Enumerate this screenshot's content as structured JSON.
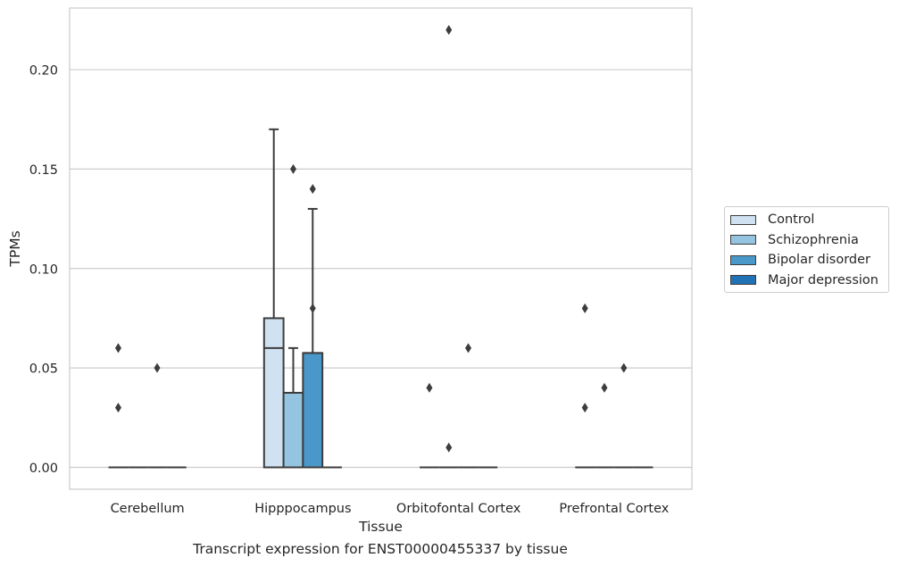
{
  "chart_data": {
    "type": "box",
    "title": "",
    "xlabel": "Tissue",
    "ylabel": "TPMs",
    "ylim": [
      -0.011,
      0.231
    ],
    "yticks": [
      "0.00",
      "0.05",
      "0.10",
      "0.15",
      "0.20"
    ],
    "ytick_values": [
      0.0,
      0.05,
      0.1,
      0.15,
      0.2
    ],
    "grid": "horizontal",
    "legend_position": "outside-right",
    "categories": [
      "Cerebellum",
      "Hipppocampus",
      "Orbitofontal Cortex",
      "Prefrontal Cortex"
    ],
    "series": [
      {
        "name": "Control",
        "color": "#d0e1f2",
        "boxes": [
          {
            "q1": 0,
            "median": 0,
            "q3": 0,
            "whisker_low": 0,
            "whisker_high": 0,
            "outliers": [
              0.06,
              0.03
            ]
          },
          {
            "q1": 0,
            "median": 0.06,
            "q3": 0.075,
            "whisker_low": 0,
            "whisker_high": 0.17,
            "outliers": []
          },
          {
            "q1": 0,
            "median": 0,
            "q3": 0,
            "whisker_low": 0,
            "whisker_high": 0,
            "outliers": [
              0.04
            ]
          },
          {
            "q1": 0,
            "median": 0,
            "q3": 0,
            "whisker_low": 0,
            "whisker_high": 0,
            "outliers": [
              0.08,
              0.03
            ]
          }
        ]
      },
      {
        "name": "Schizophrenia",
        "color": "#94c4df",
        "boxes": [
          {
            "q1": 0,
            "median": 0,
            "q3": 0,
            "whisker_low": 0,
            "whisker_high": 0,
            "outliers": []
          },
          {
            "q1": 0,
            "median": 0.0375,
            "q3": 0.0375,
            "whisker_low": 0,
            "whisker_high": 0.06,
            "outliers": [
              0.15
            ]
          },
          {
            "q1": 0,
            "median": 0,
            "q3": 0,
            "whisker_low": 0,
            "whisker_high": 0,
            "outliers": [
              0.22,
              0.01
            ]
          },
          {
            "q1": 0,
            "median": 0,
            "q3": 0,
            "whisker_low": 0,
            "whisker_high": 0,
            "outliers": [
              0.04
            ]
          }
        ]
      },
      {
        "name": "Bipolar disorder",
        "color": "#4a98c9",
        "boxes": [
          {
            "q1": 0,
            "median": 0,
            "q3": 0,
            "whisker_low": 0,
            "whisker_high": 0,
            "outliers": [
              0.05
            ]
          },
          {
            "q1": 0,
            "median": 0.0575,
            "q3": 0.0575,
            "whisker_low": 0,
            "whisker_high": 0.13,
            "outliers": [
              0.14,
              0.08
            ]
          },
          {
            "q1": 0,
            "median": 0,
            "q3": 0,
            "whisker_low": 0,
            "whisker_high": 0,
            "outliers": [
              0.06
            ]
          },
          {
            "q1": 0,
            "median": 0,
            "q3": 0,
            "whisker_low": 0,
            "whisker_high": 0,
            "outliers": [
              0.05
            ]
          }
        ]
      },
      {
        "name": "Major depression",
        "color": "#2171b5",
        "boxes": [
          {
            "q1": 0,
            "median": 0,
            "q3": 0,
            "whisker_low": 0,
            "whisker_high": 0,
            "outliers": []
          },
          {
            "q1": 0,
            "median": 0,
            "q3": 0,
            "whisker_low": 0,
            "whisker_high": 0,
            "outliers": []
          },
          {
            "q1": 0,
            "median": 0,
            "q3": 0,
            "whisker_low": 0,
            "whisker_high": 0,
            "outliers": []
          },
          {
            "q1": 0,
            "median": 0,
            "q3": 0,
            "whisker_low": 0,
            "whisker_high": 0,
            "outliers": []
          }
        ]
      }
    ]
  },
  "caption": "Transcript expression for ENST00000455337 by tissue"
}
